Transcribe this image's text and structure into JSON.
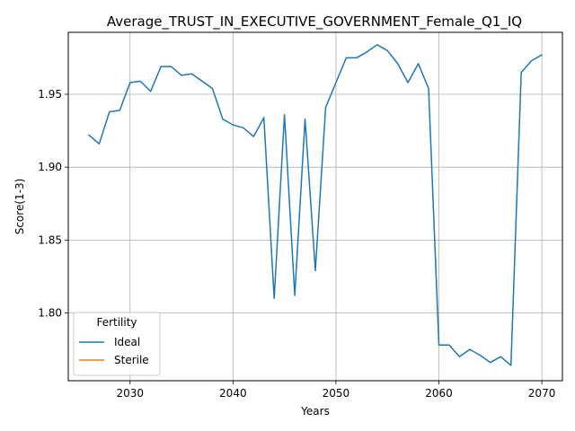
{
  "chart_data": {
    "type": "line",
    "title": "Average_TRUST_IN_EXECUTIVE_GOVERNMENT_Female_Q1_IQ",
    "xlabel": "Years",
    "ylabel": "Score(1-3)",
    "xlim": [
      2024,
      2072
    ],
    "ylim": [
      1.7535,
      1.9925
    ],
    "xticks": [
      2030,
      2040,
      2050,
      2060,
      2070
    ],
    "yticks": [
      1.8,
      1.85,
      1.9,
      1.95
    ],
    "xtick_labels": [
      "2030",
      "2040",
      "2050",
      "2060",
      "2070"
    ],
    "ytick_labels": [
      "1.80",
      "1.85",
      "1.90",
      "1.95"
    ],
    "grid": true,
    "legend": {
      "title": "Fertility",
      "placement": "lower-left"
    },
    "series": [
      {
        "name": "Ideal",
        "color": "#1f77b4",
        "x": [
          2026,
          2027,
          2028,
          2029,
          2030,
          2031,
          2032,
          2033,
          2034,
          2035,
          2036,
          2037,
          2038,
          2039,
          2040,
          2041,
          2042,
          2043,
          2044,
          2045,
          2046,
          2047,
          2048,
          2049,
          2050,
          2051,
          2052,
          2053,
          2054,
          2055,
          2056,
          2057,
          2058,
          2059,
          2060,
          2061,
          2062,
          2063,
          2064,
          2065,
          2066,
          2067,
          2068,
          2069,
          2070
        ],
        "y": [
          1.922,
          1.916,
          1.938,
          1.939,
          1.958,
          1.959,
          1.952,
          1.969,
          1.969,
          1.963,
          1.964,
          1.959,
          1.954,
          1.933,
          1.929,
          1.927,
          1.921,
          1.934,
          1.81,
          1.936,
          1.812,
          1.933,
          1.829,
          1.941,
          1.958,
          1.975,
          1.975,
          1.979,
          1.984,
          1.98,
          1.971,
          1.958,
          1.971,
          1.954,
          1.778,
          1.778,
          1.77,
          1.775,
          1.771,
          1.766,
          1.77,
          1.764,
          1.965,
          1.973,
          1.977
        ]
      },
      {
        "name": "Sterile",
        "color": "#ff7f0e",
        "x": [],
        "y": []
      }
    ]
  }
}
